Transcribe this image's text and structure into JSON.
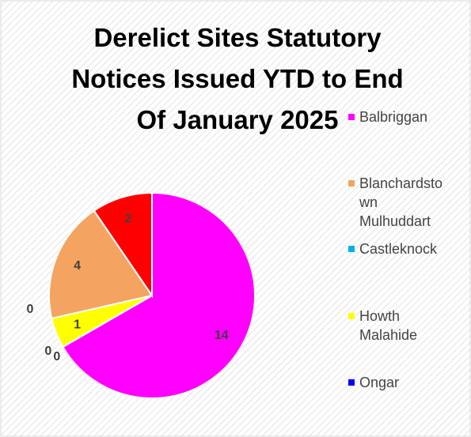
{
  "chart_data": {
    "type": "pie",
    "title": "Derelict Sites Statutory Notices Issued YTD to End Of January 2025",
    "categories": [
      "Balbriggan",
      "Castleknock",
      "Ongar",
      "Howth Malahide",
      null,
      "Blanchardstown Mulhuddart",
      null
    ],
    "values": [
      14,
      0,
      0,
      1,
      0,
      4,
      2
    ],
    "colors": [
      "#ff00ff",
      "#00b0f0",
      "#0000ff",
      "#ffff00",
      "#a6a6a6",
      "#f4a460",
      "#ff0000"
    ]
  }
}
